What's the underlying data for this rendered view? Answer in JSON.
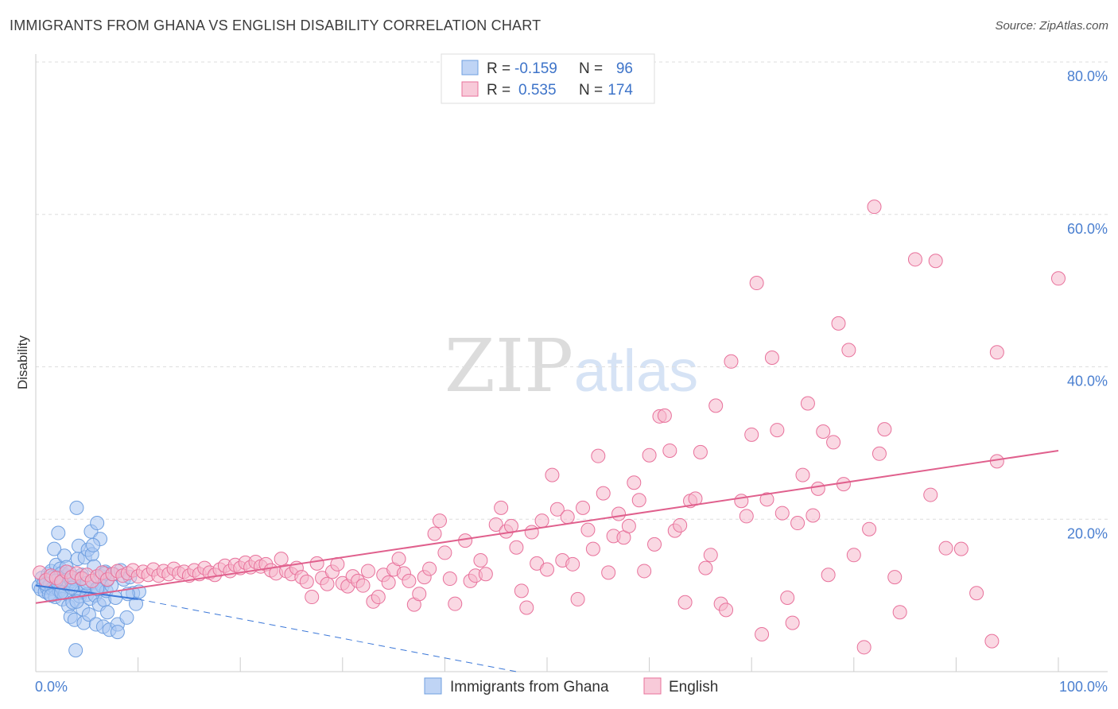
{
  "title": "IMMIGRANTS FROM GHANA VS ENGLISH DISABILITY CORRELATION CHART",
  "source": "Source: ZipAtlas.com",
  "watermark": {
    "zip": "ZIP",
    "atlas": "atlas"
  },
  "chart_data": {
    "type": "scatter",
    "xlabel": "",
    "ylabel": "Disability",
    "xlim": [
      0,
      100
    ],
    "ylim": [
      0,
      80
    ],
    "x_tick_labels": [
      "0.0%",
      "100.0%"
    ],
    "y_ticks": [
      20,
      40,
      60,
      80
    ],
    "y_tick_labels": [
      "20.0%",
      "40.0%",
      "60.0%",
      "80.0%"
    ],
    "grid": true,
    "legend_position": "top-center",
    "series": [
      {
        "name": "Immigrants from Ghana",
        "color": "#6f9fe0",
        "fill": "#a9c6f2",
        "R": "-0.159",
        "N": "96",
        "trend": {
          "x0": 0,
          "y0": 11.3,
          "x1": 10,
          "y1": 9.5,
          "dash_to_x": 47,
          "dash_to_y": 0
        },
        "points": [
          [
            0.3,
            11.2
          ],
          [
            0.5,
            10.8
          ],
          [
            0.6,
            12.3
          ],
          [
            0.8,
            11.6
          ],
          [
            0.9,
            10.5
          ],
          [
            1.0,
            12.0
          ],
          [
            1.1,
            11.0
          ],
          [
            1.2,
            12.8
          ],
          [
            1.3,
            10.2
          ],
          [
            1.4,
            11.5
          ],
          [
            1.5,
            13.2
          ],
          [
            1.6,
            10.9
          ],
          [
            1.7,
            12.4
          ],
          [
            1.8,
            11.1
          ],
          [
            1.9,
            9.8
          ],
          [
            2.0,
            14.0
          ],
          [
            2.1,
            12.1
          ],
          [
            2.2,
            11.3
          ],
          [
            2.3,
            10.6
          ],
          [
            2.4,
            13.5
          ],
          [
            2.5,
            12.9
          ],
          [
            2.6,
            9.5
          ],
          [
            2.7,
            11.8
          ],
          [
            2.8,
            15.2
          ],
          [
            2.9,
            10.3
          ],
          [
            3.0,
            12.6
          ],
          [
            3.1,
            11.4
          ],
          [
            3.2,
            8.6
          ],
          [
            3.3,
            13.0
          ],
          [
            3.4,
            7.2
          ],
          [
            3.5,
            11.9
          ],
          [
            3.6,
            9.1
          ],
          [
            3.7,
            12.2
          ],
          [
            3.8,
            6.8
          ],
          [
            3.9,
            10.7
          ],
          [
            4.0,
            21.5
          ],
          [
            4.1,
            14.8
          ],
          [
            4.2,
            16.5
          ],
          [
            4.3,
            9.9
          ],
          [
            4.4,
            10.4
          ],
          [
            4.5,
            12.7
          ],
          [
            4.6,
            8.2
          ],
          [
            4.7,
            6.4
          ],
          [
            4.8,
            15.0
          ],
          [
            4.9,
            11.0
          ],
          [
            5.0,
            10.1
          ],
          [
            5.1,
            16.0
          ],
          [
            5.2,
            7.5
          ],
          [
            5.3,
            9.6
          ],
          [
            5.4,
            18.4
          ],
          [
            5.5,
            15.4
          ],
          [
            5.6,
            11.7
          ],
          [
            5.7,
            13.8
          ],
          [
            5.8,
            10.0
          ],
          [
            5.9,
            6.2
          ],
          [
            6.0,
            19.5
          ],
          [
            6.1,
            10.8
          ],
          [
            6.2,
            8.8
          ],
          [
            6.3,
            17.4
          ],
          [
            6.4,
            12.5
          ],
          [
            6.5,
            11.2
          ],
          [
            6.6,
            5.9
          ],
          [
            6.7,
            9.4
          ],
          [
            6.8,
            13.1
          ],
          [
            6.9,
            10.6
          ],
          [
            7.0,
            12.0
          ],
          [
            7.2,
            5.5
          ],
          [
            7.4,
            11.3
          ],
          [
            7.6,
            12.8
          ],
          [
            7.8,
            9.7
          ],
          [
            8.0,
            6.2
          ],
          [
            8.3,
            13.3
          ],
          [
            8.6,
            12.1
          ],
          [
            8.9,
            7.1
          ],
          [
            9.2,
            12.4
          ],
          [
            9.5,
            10.3
          ],
          [
            9.8,
            8.9
          ],
          [
            10.1,
            10.5
          ],
          [
            1.0,
            11.5
          ],
          [
            1.5,
            10.0
          ],
          [
            2.0,
            11.9
          ],
          [
            2.5,
            10.4
          ],
          [
            3.0,
            13.7
          ],
          [
            3.5,
            11.0
          ],
          [
            4.0,
            9.2
          ],
          [
            4.5,
            12.3
          ],
          [
            5.0,
            11.6
          ],
          [
            6.0,
            10.9
          ],
          [
            7.0,
            7.8
          ],
          [
            8.0,
            5.2
          ],
          [
            9.0,
            10.2
          ],
          [
            1.8,
            16.1
          ],
          [
            2.2,
            18.2
          ],
          [
            3.9,
            2.8
          ],
          [
            5.6,
            16.6
          ],
          [
            6.8,
            12.9
          ]
        ]
      },
      {
        "name": "English",
        "color": "#e8719b",
        "fill": "#f6b8cc",
        "R": "0.535",
        "N": "174",
        "trend": {
          "x0": 0,
          "y0": 9.0,
          "x1": 100,
          "y1": 29.0
        },
        "points": [
          [
            0.4,
            13.0
          ],
          [
            1.0,
            12.0
          ],
          [
            1.5,
            12.6
          ],
          [
            2.0,
            12.3
          ],
          [
            2.5,
            11.8
          ],
          [
            3.0,
            13.1
          ],
          [
            3.5,
            12.4
          ],
          [
            4.0,
            12.9
          ],
          [
            4.5,
            12.2
          ],
          [
            5.0,
            12.7
          ],
          [
            5.5,
            11.9
          ],
          [
            6.0,
            12.5
          ],
          [
            6.5,
            13.0
          ],
          [
            7.0,
            12.1
          ],
          [
            7.5,
            12.8
          ],
          [
            8.0,
            13.2
          ],
          [
            8.5,
            12.6
          ],
          [
            9.0,
            12.9
          ],
          [
            9.5,
            13.3
          ],
          [
            10.0,
            12.5
          ],
          [
            10.5,
            13.1
          ],
          [
            11.0,
            12.7
          ],
          [
            11.5,
            13.4
          ],
          [
            12.0,
            12.6
          ],
          [
            12.5,
            13.2
          ],
          [
            13.0,
            12.8
          ],
          [
            13.5,
            13.5
          ],
          [
            14.0,
            12.9
          ],
          [
            14.5,
            13.1
          ],
          [
            15.0,
            12.6
          ],
          [
            15.5,
            13.3
          ],
          [
            16.0,
            12.8
          ],
          [
            16.5,
            13.6
          ],
          [
            17.0,
            13.0
          ],
          [
            17.5,
            12.7
          ],
          [
            18.0,
            13.4
          ],
          [
            18.5,
            13.9
          ],
          [
            19.0,
            13.2
          ],
          [
            19.5,
            14.0
          ],
          [
            20.0,
            13.6
          ],
          [
            20.5,
            14.3
          ],
          [
            21.0,
            13.7
          ],
          [
            21.5,
            14.4
          ],
          [
            22.0,
            13.8
          ],
          [
            22.5,
            14.1
          ],
          [
            23.0,
            13.3
          ],
          [
            23.5,
            12.9
          ],
          [
            24.0,
            14.8
          ],
          [
            24.5,
            13.2
          ],
          [
            25.0,
            12.8
          ],
          [
            25.5,
            13.6
          ],
          [
            26.0,
            12.4
          ],
          [
            26.5,
            11.8
          ],
          [
            27.0,
            9.8
          ],
          [
            27.5,
            14.2
          ],
          [
            28.0,
            12.3
          ],
          [
            28.5,
            11.5
          ],
          [
            29.0,
            13.1
          ],
          [
            29.5,
            14.1
          ],
          [
            30.0,
            11.6
          ],
          [
            30.5,
            11.2
          ],
          [
            31.0,
            12.5
          ],
          [
            31.5,
            11.9
          ],
          [
            32.0,
            11.3
          ],
          [
            32.5,
            13.2
          ],
          [
            33.0,
            9.2
          ],
          [
            33.5,
            9.8
          ],
          [
            34.0,
            12.7
          ],
          [
            34.5,
            11.7
          ],
          [
            35.0,
            13.4
          ],
          [
            35.5,
            14.8
          ],
          [
            36.0,
            12.9
          ],
          [
            36.5,
            11.9
          ],
          [
            37.0,
            8.8
          ],
          [
            37.5,
            10.2
          ],
          [
            38.0,
            12.4
          ],
          [
            38.5,
            13.5
          ],
          [
            39.0,
            18.1
          ],
          [
            39.5,
            19.8
          ],
          [
            40.0,
            15.6
          ],
          [
            40.5,
            12.2
          ],
          [
            41.0,
            8.9
          ],
          [
            42.0,
            17.2
          ],
          [
            42.5,
            11.9
          ],
          [
            43.0,
            12.6
          ],
          [
            43.5,
            14.6
          ],
          [
            44.0,
            12.8
          ],
          [
            45.0,
            19.3
          ],
          [
            45.5,
            21.5
          ],
          [
            46.0,
            18.4
          ],
          [
            46.5,
            19.1
          ],
          [
            47.0,
            16.3
          ],
          [
            47.5,
            10.6
          ],
          [
            48.0,
            8.4
          ],
          [
            48.5,
            18.3
          ],
          [
            49.0,
            14.2
          ],
          [
            49.5,
            19.8
          ],
          [
            50.0,
            13.4
          ],
          [
            50.5,
            25.8
          ],
          [
            51.0,
            21.3
          ],
          [
            51.5,
            14.6
          ],
          [
            52.0,
            20.3
          ],
          [
            52.5,
            14.1
          ],
          [
            53.0,
            9.5
          ],
          [
            53.5,
            21.5
          ],
          [
            54.0,
            18.6
          ],
          [
            54.5,
            16.1
          ],
          [
            55.0,
            28.3
          ],
          [
            55.5,
            23.4
          ],
          [
            56.0,
            13.0
          ],
          [
            56.5,
            17.8
          ],
          [
            57.0,
            20.7
          ],
          [
            57.5,
            17.6
          ],
          [
            58.0,
            19.1
          ],
          [
            58.5,
            24.8
          ],
          [
            59.0,
            22.5
          ],
          [
            59.5,
            13.2
          ],
          [
            60.0,
            28.4
          ],
          [
            60.5,
            16.7
          ],
          [
            61.0,
            33.5
          ],
          [
            61.5,
            33.6
          ],
          [
            62.0,
            29.0
          ],
          [
            62.5,
            18.5
          ],
          [
            63.0,
            19.2
          ],
          [
            63.5,
            9.1
          ],
          [
            64.0,
            22.4
          ],
          [
            64.5,
            22.7
          ],
          [
            65.0,
            28.8
          ],
          [
            65.5,
            13.6
          ],
          [
            66.0,
            15.3
          ],
          [
            66.5,
            34.9
          ],
          [
            67.0,
            8.9
          ],
          [
            67.5,
            8.1
          ],
          [
            68.0,
            40.7
          ],
          [
            69.0,
            22.4
          ],
          [
            69.5,
            20.4
          ],
          [
            70.0,
            31.1
          ],
          [
            70.5,
            51.0
          ],
          [
            71.0,
            4.9
          ],
          [
            71.5,
            22.6
          ],
          [
            72.0,
            41.2
          ],
          [
            72.5,
            31.7
          ],
          [
            73.0,
            20.8
          ],
          [
            73.5,
            9.7
          ],
          [
            74.0,
            6.4
          ],
          [
            74.5,
            19.5
          ],
          [
            75.0,
            25.8
          ],
          [
            75.5,
            35.2
          ],
          [
            76.0,
            20.5
          ],
          [
            76.5,
            24.0
          ],
          [
            77.0,
            31.5
          ],
          [
            77.5,
            12.7
          ],
          [
            78.0,
            30.1
          ],
          [
            78.5,
            45.7
          ],
          [
            79.0,
            24.6
          ],
          [
            79.5,
            42.2
          ],
          [
            80.0,
            15.3
          ],
          [
            81.0,
            3.2
          ],
          [
            81.5,
            18.7
          ],
          [
            82.0,
            61.0
          ],
          [
            82.5,
            28.6
          ],
          [
            83.0,
            31.8
          ],
          [
            84.0,
            12.4
          ],
          [
            84.5,
            7.8
          ],
          [
            86.0,
            54.1
          ],
          [
            87.5,
            23.2
          ],
          [
            88.0,
            53.9
          ],
          [
            89.0,
            16.2
          ],
          [
            92.0,
            10.3
          ],
          [
            93.5,
            4.0
          ],
          [
            94.0,
            27.6
          ],
          [
            94.0,
            41.9
          ],
          [
            100.0,
            51.6
          ],
          [
            90.5,
            16.1
          ]
        ]
      }
    ]
  }
}
